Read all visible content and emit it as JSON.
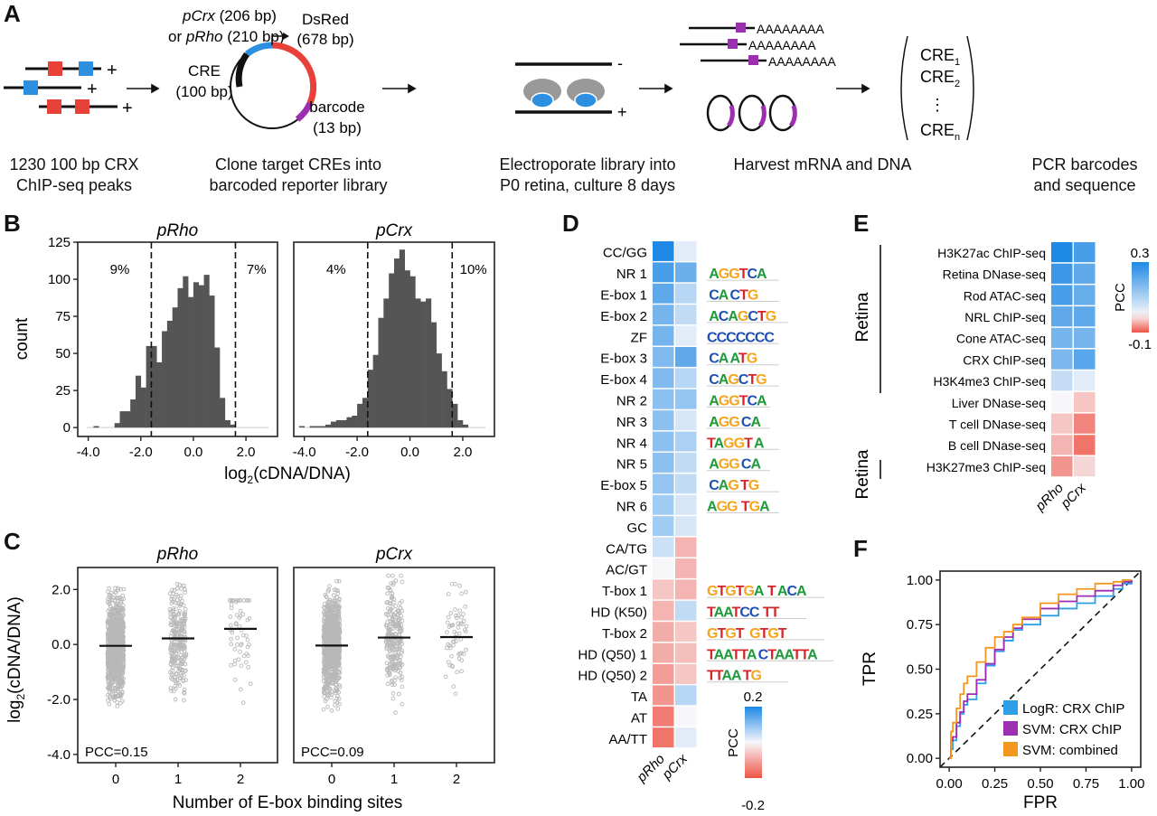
{
  "panels": {
    "A": {
      "label": "A",
      "steps": [
        {
          "caption_line1": "1230 100 bp CRX",
          "caption_line2": "ChIP-seq peaks"
        },
        {
          "caption_line1": "Clone target CREs into",
          "caption_line2": "barcoded reporter library"
        },
        {
          "caption_line1": "Electroporate library into",
          "caption_line2": "P0 retina, culture 8 days"
        },
        {
          "caption_line1": "Harvest mRNA and DNA",
          "caption_line2": ""
        },
        {
          "caption_line1": "PCR barcodes",
          "caption_line2": "and sequence"
        }
      ],
      "plus": "+",
      "minus": "-",
      "promoter_line1_italic": "pCrx",
      "promoter_line1_rest": " (206 bp)",
      "promoter_line2_pre": "or ",
      "promoter_line2_italic": "pRho",
      "promoter_line2_rest": " (210 bp)",
      "cre_label": "CRE",
      "cre_size": "(100 bp)",
      "dsred_label": "DsRed",
      "dsred_size": "(678 bp)",
      "barcode_label": "barcode",
      "barcode_size": "(13 bp)",
      "polyA": "AAAAAAAA",
      "cre_list": [
        "CRE",
        "CRE",
        "CRE"
      ],
      "cre_subscripts": [
        "1",
        "2",
        "n"
      ],
      "ellipsis": "⋮",
      "colors": {
        "red": "#e8413a",
        "blue": "#2c8fe0",
        "purple": "#9b2fb0",
        "gray": "#9a9a9a",
        "black": "#111111"
      }
    },
    "B": {
      "label": "B",
      "ylabel": "count",
      "xlabel_pre": "log",
      "xlabel_sub": "2",
      "xlabel_post": "(cDNA/DNA)"
    },
    "C": {
      "label": "C",
      "ylabel_pre": "log",
      "ylabel_sub": "2",
      "ylabel_post": "(cDNA/DNA)",
      "xlabel": "Number of E-box binding sites"
    },
    "D": {
      "label": "D",
      "legend_title": "PCC",
      "legend_max": "0.2",
      "legend_min": "-0.2"
    },
    "E": {
      "label": "E",
      "legend_title": "PCC",
      "legend_max": "0.3",
      "legend_min": "-0.1",
      "group_top": "Retina",
      "group_bottom": "Retina"
    },
    "F": {
      "label": "F"
    }
  },
  "chart_data": [
    {
      "id": "B-pRho",
      "type": "bar",
      "title": "pRho",
      "xlabel": "log2(cDNA/DNA)",
      "ylabel": "count",
      "xlim": [
        -4.4,
        3.2
      ],
      "ylim": [
        -6,
        125
      ],
      "xticks": [
        "-4.0",
        "-2.0",
        "0.0",
        "2.0"
      ],
      "xtick_values": [
        -4,
        -2,
        0,
        2
      ],
      "yticks": [
        "0",
        "25",
        "50",
        "75",
        "100",
        "125"
      ],
      "ytick_values": [
        0,
        25,
        50,
        75,
        100,
        125
      ],
      "bin_start": -3.8,
      "bin_width": 0.2,
      "values": [
        1,
        0,
        0,
        0,
        3,
        11,
        11,
        19,
        35,
        27,
        55,
        55,
        44,
        65,
        72,
        81,
        94,
        102,
        88,
        98,
        96,
        103,
        89,
        54,
        20,
        5,
        2
      ],
      "thresholds": [
        -1.6,
        1.6
      ],
      "annotations": [
        "9%",
        "7%"
      ]
    },
    {
      "id": "B-pCrx",
      "type": "bar",
      "title": "pCrx",
      "xlabel": "log2(cDNA/DNA)",
      "ylabel": "count",
      "xlim": [
        -4.4,
        3.2
      ],
      "ylim": [
        -6,
        125
      ],
      "xticks": [
        "-4.0",
        "-2.0",
        "0.0",
        "2.0"
      ],
      "xtick_values": [
        -4,
        -2,
        0,
        2
      ],
      "bin_start": -4.2,
      "bin_width": 0.2,
      "values": [
        1,
        0,
        1,
        1,
        1,
        2,
        4,
        5,
        5,
        7,
        8,
        16,
        20,
        39,
        49,
        74,
        87,
        104,
        114,
        120,
        106,
        102,
        87,
        85,
        87,
        71,
        50,
        38,
        26,
        16,
        5,
        2
      ],
      "thresholds": [
        -1.6,
        1.6
      ],
      "annotations": [
        "4%",
        "10%"
      ]
    },
    {
      "id": "C-pRho",
      "type": "scatter",
      "title": "pRho",
      "xlabel": "Number of E-box binding sites",
      "ylabel": "log2(cDNA/DNA)",
      "categories": [
        "0",
        "1",
        "2"
      ],
      "ylim": [
        -4.3,
        2.8
      ],
      "yticks": [
        "-4.0",
        "-2.0",
        "0.0",
        "2.0"
      ],
      "ytick_values": [
        -4,
        -2,
        0,
        2
      ],
      "means": [
        -0.05,
        0.22,
        0.57
      ],
      "counts": [
        900,
        260,
        60
      ],
      "ranges": [
        [
          -2.9,
          2.05
        ],
        [
          -2.7,
          2.2
        ],
        [
          -2.8,
          1.6
        ]
      ],
      "annotation": "PCC=0.15"
    },
    {
      "id": "C-pCrx",
      "type": "scatter",
      "title": "pCrx",
      "xlabel": "Number of E-box binding sites",
      "ylabel": "log2(cDNA/DNA)",
      "categories": [
        "0",
        "1",
        "2"
      ],
      "ylim": [
        -4.3,
        2.8
      ],
      "yticks": [
        "-4.0",
        "-2.0",
        "0.0",
        "2.0"
      ],
      "ytick_values": [
        -4,
        -2,
        0,
        2
      ],
      "means": [
        -0.04,
        0.25,
        0.27
      ],
      "counts": [
        900,
        260,
        60
      ],
      "ranges": [
        [
          -3.5,
          2.3
        ],
        [
          -3.1,
          2.5
        ],
        [
          -2.7,
          2.2
        ]
      ],
      "annotation": "PCC=0.09"
    },
    {
      "id": "D",
      "type": "heatmap",
      "columns": [
        "pRho",
        "pCrx"
      ],
      "rows": [
        "CC/GG",
        "NR 1",
        "E-box 1",
        "E-box 2",
        "ZF",
        "E-box 3",
        "E-box 4",
        "NR 2",
        "NR 3",
        "NR 4",
        "NR 5",
        "E-box 5",
        "NR 6",
        "GC",
        "CA/TG",
        "AC/GT",
        "T-box 1",
        "HD (K50)",
        "T-box 2",
        "HD (Q50) 1",
        "HD (Q50) 2",
        "TA",
        "AT",
        "AA/TT"
      ],
      "values": [
        [
          0.2,
          0.02
        ],
        [
          0.16,
          0.13
        ],
        [
          0.14,
          0.06
        ],
        [
          0.12,
          0.05
        ],
        [
          0.12,
          0.02
        ],
        [
          0.11,
          0.14
        ],
        [
          0.11,
          0.06
        ],
        [
          0.1,
          0.09
        ],
        [
          0.1,
          0.03
        ],
        [
          0.1,
          0.07
        ],
        [
          0.1,
          0.05
        ],
        [
          0.09,
          0.05
        ],
        [
          0.08,
          0.03
        ],
        [
          0.08,
          0.03
        ],
        [
          0.04,
          -0.08
        ],
        [
          0.0,
          -0.08
        ],
        [
          -0.06,
          -0.08
        ],
        [
          -0.08,
          0.05
        ],
        [
          -0.09,
          -0.06
        ],
        [
          -0.09,
          -0.07
        ],
        [
          -0.11,
          -0.06
        ],
        [
          -0.12,
          0.06
        ],
        [
          -0.15,
          0.0
        ],
        [
          -0.16,
          0.02
        ]
      ],
      "motifs": [
        "",
        "_AGGTCA_",
        "_CA_CTG_",
        "_ACAGCTG_",
        "CCCCCCC_",
        "_CA_ATG_",
        "_CAGCTG_",
        "_AGGTCA",
        "_AGG_CA",
        "TAGGT_A_",
        "_AGG_CA",
        "_CAG_TG_",
        "AGG__TGA",
        "",
        "",
        "",
        "GTGTGA__T_ACA",
        "TAATCC__TT_",
        "GTGT___GTGT__",
        "TAATTA_CTAATTA",
        "TTAA_TG__",
        "",
        "",
        ""
      ],
      "colorbar": {
        "min": -0.2,
        "max": 0.2,
        "label": "PCC"
      }
    },
    {
      "id": "E",
      "type": "heatmap",
      "columns": [
        "pRho",
        "pCrx"
      ],
      "rows": [
        "H3K27ac ChIP-seq",
        "Retina DNase-seq",
        "Rod ATAC-seq",
        "NRL ChIP-seq",
        "Cone ATAC-seq",
        "CRX ChIP-seq",
        "H3K4me3 ChIP-seq",
        "Liver DNase-seq",
        "T cell DNase-seq",
        "B cell DNase-seq",
        "H3K27me3 ChIP-seq"
      ],
      "values": [
        [
          0.3,
          0.24
        ],
        [
          0.26,
          0.21
        ],
        [
          0.24,
          0.2
        ],
        [
          0.21,
          0.21
        ],
        [
          0.18,
          0.18
        ],
        [
          0.17,
          0.22
        ],
        [
          0.07,
          0.03
        ],
        [
          0.0,
          -0.03
        ],
        [
          -0.03,
          -0.07
        ],
        [
          -0.04,
          -0.08
        ],
        [
          -0.06,
          -0.02
        ]
      ],
      "colorbar": {
        "min": -0.1,
        "max": 0.3,
        "label": "PCC"
      }
    },
    {
      "id": "F",
      "type": "line",
      "xlabel": "FPR",
      "ylabel": "TPR",
      "xlim": [
        -0.05,
        1.05
      ],
      "ylim": [
        -0.05,
        1.05
      ],
      "xticks": [
        "0.00",
        "0.25",
        "0.50",
        "0.75",
        "1.00"
      ],
      "yticks": [
        "0.00",
        "0.25",
        "0.50",
        "0.75",
        "1.00"
      ],
      "tick_values": [
        0,
        0.25,
        0.5,
        0.75,
        1.0
      ],
      "legend_position": "bottom-right",
      "diagonal": true,
      "series": [
        {
          "name": "LogR: CRX ChIP",
          "color": "#2c9fe8",
          "x": [
            0,
            0.01,
            0.02,
            0.04,
            0.06,
            0.08,
            0.1,
            0.15,
            0.2,
            0.25,
            0.3,
            0.35,
            0.4,
            0.5,
            0.6,
            0.7,
            0.8,
            0.9,
            0.95,
            1.0
          ],
          "y": [
            0,
            0.05,
            0.1,
            0.18,
            0.25,
            0.3,
            0.33,
            0.42,
            0.52,
            0.6,
            0.66,
            0.72,
            0.75,
            0.8,
            0.84,
            0.87,
            0.91,
            0.95,
            0.98,
            1.0
          ]
        },
        {
          "name": "SVM: CRX ChIP",
          "color": "#9b2fb0",
          "x": [
            0,
            0.01,
            0.02,
            0.04,
            0.06,
            0.08,
            0.1,
            0.15,
            0.2,
            0.25,
            0.3,
            0.35,
            0.4,
            0.5,
            0.6,
            0.7,
            0.8,
            0.9,
            0.95,
            1.0
          ],
          "y": [
            0,
            0.1,
            0.12,
            0.2,
            0.26,
            0.32,
            0.36,
            0.44,
            0.53,
            0.61,
            0.68,
            0.73,
            0.78,
            0.84,
            0.88,
            0.91,
            0.94,
            0.97,
            0.99,
            1.0
          ]
        },
        {
          "name": "SVM: combined",
          "color": "#f5961e",
          "x": [
            0,
            0.01,
            0.02,
            0.04,
            0.06,
            0.08,
            0.1,
            0.15,
            0.2,
            0.25,
            0.3,
            0.35,
            0.4,
            0.5,
            0.6,
            0.7,
            0.8,
            0.9,
            0.95,
            1.0
          ],
          "y": [
            0,
            0.15,
            0.2,
            0.28,
            0.36,
            0.42,
            0.46,
            0.54,
            0.62,
            0.68,
            0.71,
            0.75,
            0.79,
            0.87,
            0.92,
            0.95,
            0.98,
            0.99,
            1.0,
            1.0
          ]
        }
      ]
    }
  ]
}
